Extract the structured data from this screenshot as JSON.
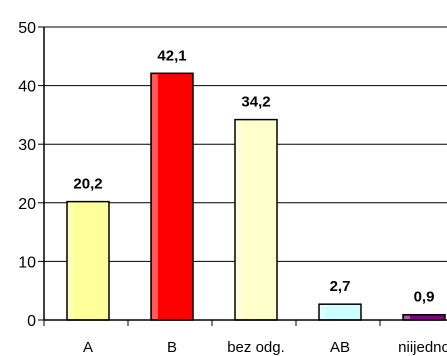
{
  "chart_data": {
    "type": "bar",
    "categories": [
      "A",
      "B",
      "bez odg.",
      "AB",
      "niijedno"
    ],
    "values": [
      20.2,
      42.1,
      34.2,
      2.7,
      0.9
    ],
    "value_labels": [
      "20,2",
      "42,1",
      "34,2",
      "2,7",
      "0,9"
    ],
    "ylim": [
      0,
      50
    ],
    "yticks": [
      0,
      10,
      20,
      30,
      40,
      50
    ],
    "grid": true,
    "legend": "none",
    "bar_colors": [
      "#ffff99",
      "#ff0000",
      "#ffffcc",
      "#ccffff",
      "#800080"
    ],
    "title": "",
    "xlabel": "",
    "ylabel": ""
  }
}
